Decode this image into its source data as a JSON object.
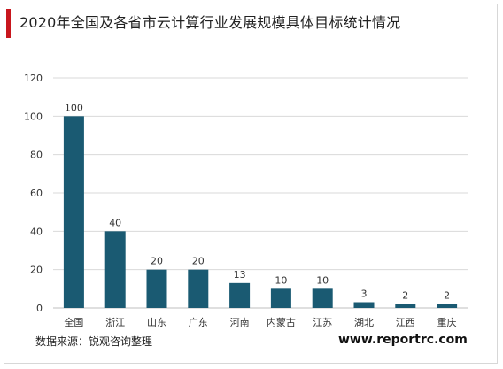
{
  "header": {
    "title": "2020年全国及各省市云计算行业发展规模具体目标统计情况"
  },
  "footer": {
    "source": "数据来源：锐观咨询整理",
    "website": "www.reportrc.com"
  },
  "colors": {
    "bar": "#1a5a72",
    "accent": "#c8161d"
  },
  "chart_data": {
    "type": "bar",
    "title": "2020年全国及各省市云计算行业发展规模具体目标统计情况",
    "xlabel": "",
    "ylabel": "",
    "categories": [
      "全国",
      "浙江",
      "山东",
      "广东",
      "河南",
      "内蒙古",
      "江苏",
      "湖北",
      "江西",
      "重庆"
    ],
    "values": [
      100,
      40,
      20,
      20,
      13,
      10,
      10,
      3,
      2,
      2
    ],
    "ylim": [
      0,
      120
    ],
    "yticks": [
      0,
      20,
      40,
      60,
      80,
      100,
      120
    ],
    "grid": true,
    "legend": "none"
  }
}
